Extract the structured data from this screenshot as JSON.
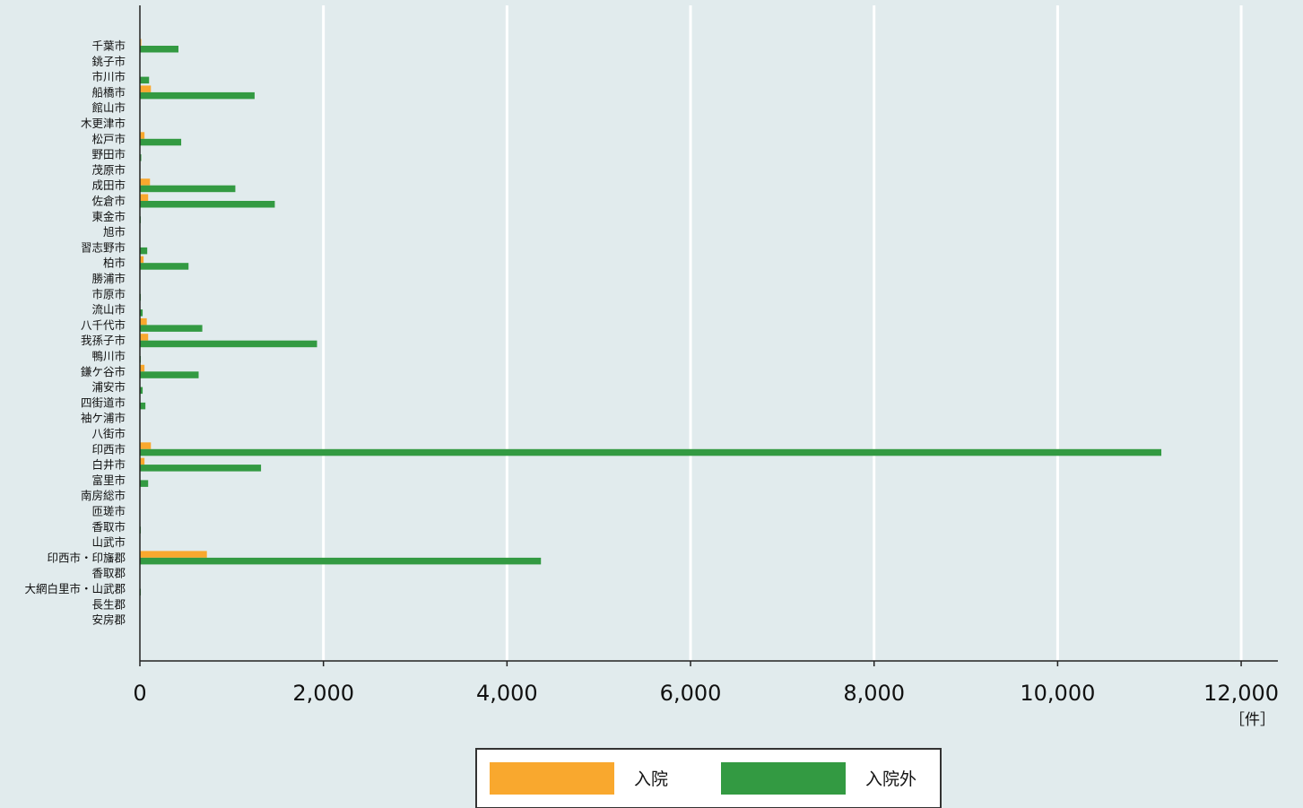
{
  "chart_data": {
    "type": "bar",
    "orientation": "horizontal",
    "categories": [
      "千葉市",
      "銚子市",
      "市川市",
      "船橋市",
      "館山市",
      "木更津市",
      "松戸市",
      "野田市",
      "茂原市",
      "成田市",
      "佐倉市",
      "東金市",
      "旭市",
      "習志野市",
      "柏市",
      "勝浦市",
      "市原市",
      "流山市",
      "八千代市",
      "我孫子市",
      "鴨川市",
      "鎌ケ谷市",
      "浦安市",
      "四街道市",
      "袖ケ浦市",
      "八街市",
      "印西市",
      "白井市",
      "富里市",
      "南房総市",
      "匝瑳市",
      "香取市",
      "山武市",
      "印西市・印旛郡",
      "香取郡",
      "大網白里市・山武郡",
      "長生郡",
      "安房郡"
    ],
    "series": [
      {
        "name": "入院",
        "color": "#f9a82e",
        "values": [
          15,
          0,
          0,
          120,
          0,
          0,
          50,
          0,
          0,
          110,
          90,
          0,
          0,
          0,
          40,
          0,
          0,
          0,
          75,
          90,
          0,
          50,
          0,
          0,
          0,
          0,
          120,
          50,
          0,
          0,
          0,
          0,
          0,
          730,
          0,
          0,
          0,
          0
        ]
      },
      {
        "name": "入院外",
        "color": "#339a42",
        "values": [
          420,
          5,
          100,
          1250,
          0,
          0,
          450,
          15,
          0,
          1040,
          1470,
          10,
          0,
          80,
          530,
          0,
          10,
          30,
          680,
          1930,
          10,
          640,
          30,
          60,
          0,
          5,
          11130,
          1320,
          90,
          0,
          0,
          10,
          0,
          4370,
          0,
          10,
          0,
          0
        ]
      }
    ],
    "xlim": [
      0,
      12400
    ],
    "xticks": [
      0,
      2000,
      4000,
      6000,
      8000,
      10000,
      12000
    ],
    "xtick_labels": [
      "0",
      "2,000",
      "4,000",
      "6,000",
      "8,000",
      "10,000",
      "12,000"
    ],
    "xlabel": "［件］",
    "grid": "vertical",
    "legend_position": "bottom-center",
    "colors": {
      "background": "#e1ebed",
      "grid": "#ffffff",
      "axis": "#222222",
      "legend_border": "#333333"
    }
  }
}
